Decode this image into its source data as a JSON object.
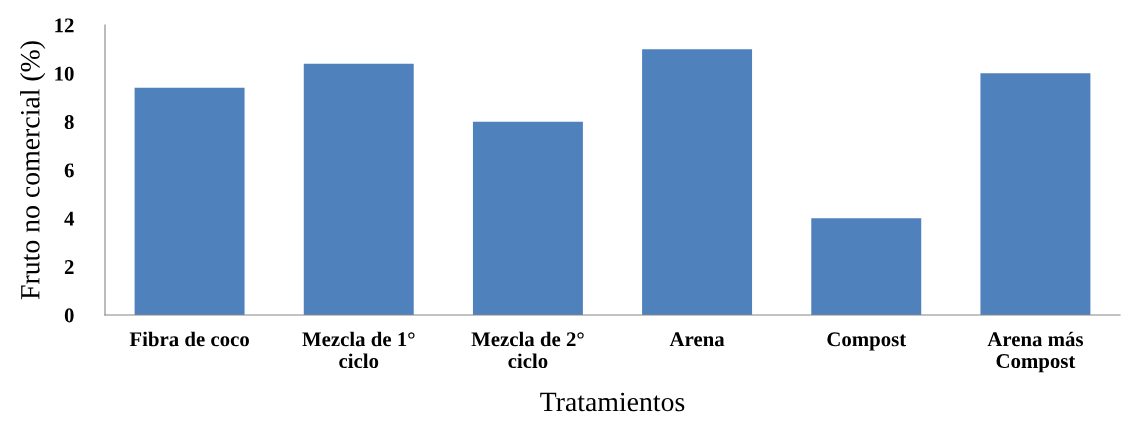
{
  "chart_data": {
    "type": "bar",
    "xlabel": "Tratamientos",
    "ylabel": "Fruto no comercial (%)",
    "categories": [
      "Fibra de coco",
      "Mezcla de 1°\nciclo",
      "Mezcla de 2°\nciclo",
      "Arena",
      "Compost",
      "Arena más\nCompost"
    ],
    "values": [
      9.4,
      10.4,
      8.0,
      11.0,
      4.0,
      10.0
    ],
    "color": "#4f81bd",
    "ylim": [
      0,
      12
    ],
    "yticks": [
      0,
      2,
      4,
      6,
      8,
      10,
      12
    ],
    "grid": false,
    "legend": false
  }
}
